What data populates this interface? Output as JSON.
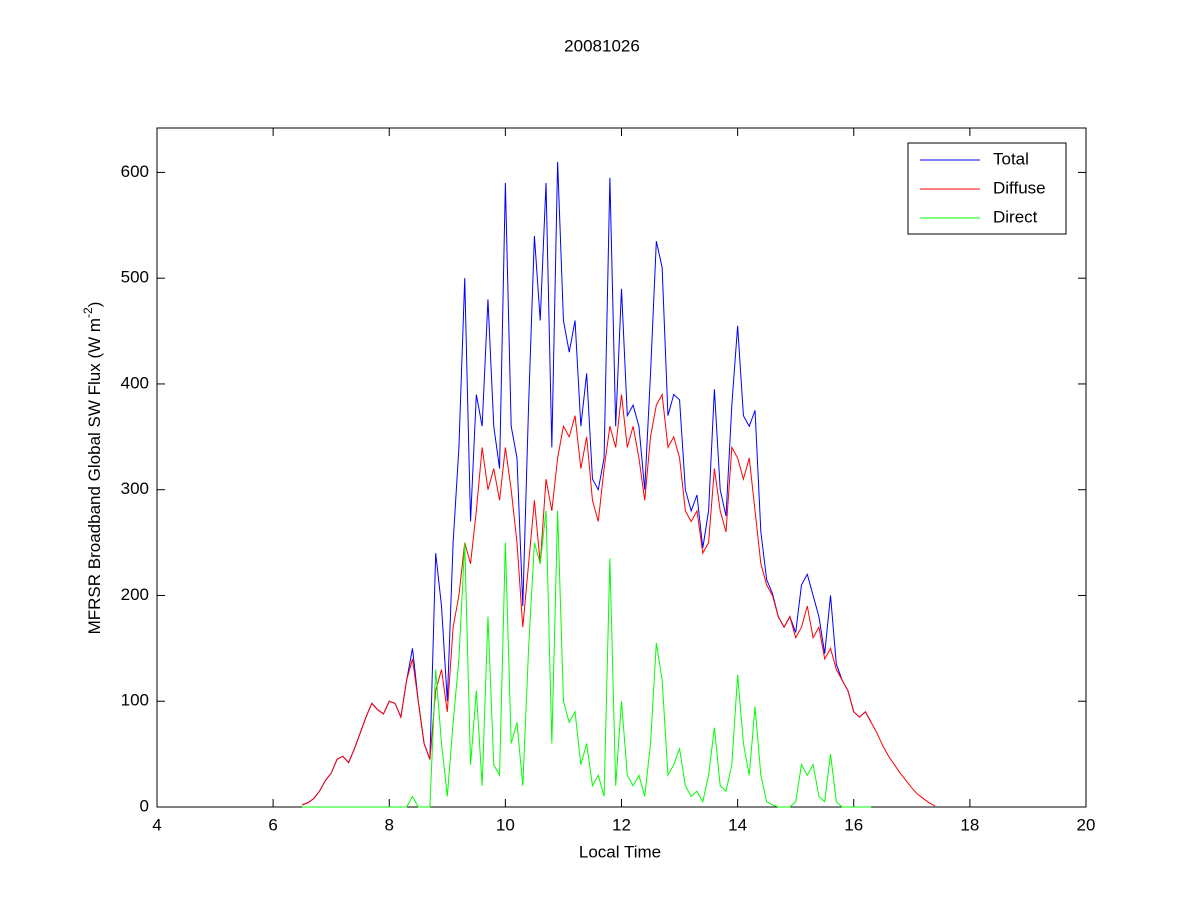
{
  "chart_data": {
    "type": "line",
    "title": "20081026",
    "xlabel": "Local Time",
    "ylabel": {
      "text": "MFRSR Broadband Global SW Flux (W m",
      "sup": "-2",
      "end": ")"
    },
    "xlim": [
      4,
      20
    ],
    "xticks": [
      4,
      6,
      8,
      10,
      12,
      14,
      16,
      18,
      20
    ],
    "ylim": [
      0,
      642
    ],
    "yticks": [
      0,
      100,
      200,
      300,
      400,
      500,
      600
    ],
    "grid": false,
    "legend": "northeast",
    "x": [
      6.5,
      6.6,
      6.7,
      6.8,
      6.9,
      7.0,
      7.1,
      7.2,
      7.3,
      7.4,
      7.5,
      7.6,
      7.7,
      7.8,
      7.9,
      8.0,
      8.1,
      8.2,
      8.3,
      8.4,
      8.5,
      8.6,
      8.7,
      8.8,
      8.9,
      9.0,
      9.1,
      9.2,
      9.3,
      9.4,
      9.5,
      9.6,
      9.7,
      9.8,
      9.9,
      10.0,
      10.1,
      10.2,
      10.3,
      10.4,
      10.5,
      10.6,
      10.7,
      10.8,
      10.9,
      11.0,
      11.1,
      11.2,
      11.3,
      11.4,
      11.5,
      11.6,
      11.7,
      11.8,
      11.9,
      12.0,
      12.1,
      12.2,
      12.3,
      12.4,
      12.5,
      12.6,
      12.7,
      12.8,
      12.9,
      13.0,
      13.1,
      13.2,
      13.3,
      13.4,
      13.5,
      13.6,
      13.7,
      13.8,
      13.9,
      14.0,
      14.1,
      14.2,
      14.3,
      14.4,
      14.5,
      14.6,
      14.7,
      14.8,
      14.9,
      15.0,
      15.1,
      15.2,
      15.3,
      15.4,
      15.5,
      15.6,
      15.7,
      15.8,
      15.9,
      16.0,
      16.1,
      16.2,
      16.3,
      16.4,
      16.5,
      16.6,
      16.7,
      16.8,
      16.9,
      17.0,
      17.1,
      17.2,
      17.3,
      17.4
    ],
    "series": [
      {
        "name": "Total",
        "color": "#0000ff",
        "values": [
          2,
          4,
          8,
          15,
          25,
          32,
          45,
          48,
          42,
          55,
          70,
          85,
          98,
          92,
          88,
          100,
          98,
          85,
          120,
          150,
          100,
          60,
          45,
          240,
          190,
          100,
          250,
          340,
          500,
          270,
          390,
          360,
          480,
          360,
          320,
          590,
          360,
          330,
          190,
          380,
          540,
          460,
          590,
          340,
          610,
          460,
          430,
          460,
          360,
          410,
          310,
          300,
          330,
          595,
          360,
          490,
          370,
          380,
          360,
          300,
          410,
          535,
          510,
          370,
          390,
          385,
          300,
          280,
          295,
          245,
          280,
          395,
          300,
          275,
          380,
          455,
          370,
          360,
          375,
          260,
          215,
          202,
          180,
          170,
          180,
          165,
          210,
          220,
          200,
          180,
          145,
          200,
          135,
          120,
          110,
          90,
          85,
          90,
          80,
          null,
          null,
          null,
          null,
          null,
          null,
          null,
          null,
          null,
          null,
          null
        ]
      },
      {
        "name": "Diffuse",
        "color": "#ff0000",
        "values": [
          2,
          4,
          8,
          15,
          25,
          32,
          45,
          48,
          42,
          55,
          70,
          85,
          98,
          92,
          88,
          100,
          98,
          85,
          120,
          140,
          100,
          60,
          45,
          110,
          130,
          90,
          170,
          200,
          250,
          230,
          280,
          340,
          300,
          320,
          290,
          340,
          300,
          250,
          170,
          230,
          290,
          230,
          310,
          280,
          330,
          360,
          350,
          370,
          320,
          350,
          290,
          270,
          320,
          360,
          340,
          390,
          340,
          360,
          330,
          290,
          350,
          380,
          390,
          340,
          350,
          330,
          280,
          270,
          280,
          240,
          250,
          320,
          280,
          260,
          340,
          330,
          310,
          330,
          280,
          230,
          210,
          200,
          180,
          170,
          180,
          160,
          170,
          190,
          160,
          170,
          140,
          150,
          130,
          120,
          110,
          90,
          85,
          90,
          80,
          70,
          58,
          48,
          40,
          32,
          25,
          18,
          12,
          8,
          4,
          1
        ]
      },
      {
        "name": "Direct",
        "color": "#00ff00",
        "values": [
          0,
          0,
          0,
          0,
          0,
          0,
          0,
          0,
          0,
          0,
          0,
          0,
          0,
          0,
          0,
          0,
          0,
          0,
          0,
          10,
          0,
          0,
          0,
          130,
          60,
          10,
          80,
          140,
          250,
          40,
          110,
          20,
          180,
          40,
          30,
          250,
          60,
          80,
          20,
          150,
          250,
          230,
          280,
          60,
          280,
          100,
          80,
          90,
          40,
          60,
          20,
          30,
          10,
          235,
          20,
          100,
          30,
          20,
          30,
          10,
          60,
          155,
          120,
          30,
          40,
          55,
          20,
          10,
          15,
          5,
          30,
          75,
          20,
          15,
          40,
          125,
          60,
          30,
          95,
          30,
          5,
          2,
          0,
          0,
          0,
          5,
          40,
          30,
          40,
          10,
          5,
          50,
          5,
          0,
          0,
          0,
          0,
          0,
          0,
          null,
          null,
          null,
          null,
          null,
          null,
          null,
          null,
          null,
          null,
          null
        ]
      }
    ]
  }
}
